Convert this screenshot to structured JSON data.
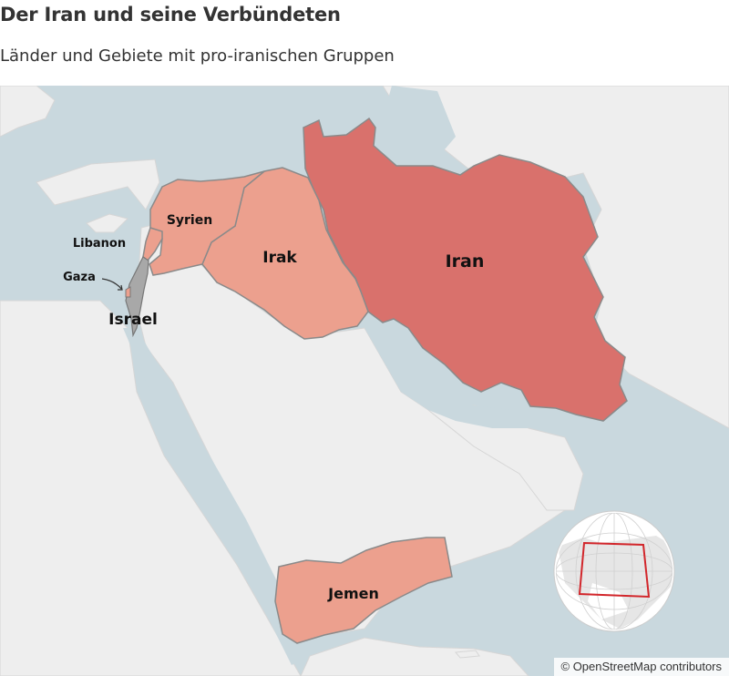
{
  "title": "Der Iran und seine Verbündeten",
  "subtitle": "Länder und Gebiete mit pro-iranischen Gruppen",
  "labels": {
    "iran": "Iran",
    "irak": "Irak",
    "syrien": "Syrien",
    "libanon": "Libanon",
    "gaza": "Gaza",
    "israel": "Israel",
    "jemen": "Jemen"
  },
  "attribution": "© OpenStreetMap contributors",
  "colors": {
    "water": "#c9d8de",
    "land": "#eeeeee",
    "iran": "#d9716c",
    "allies": "#eca08e",
    "israel": "#a8a8a8"
  }
}
